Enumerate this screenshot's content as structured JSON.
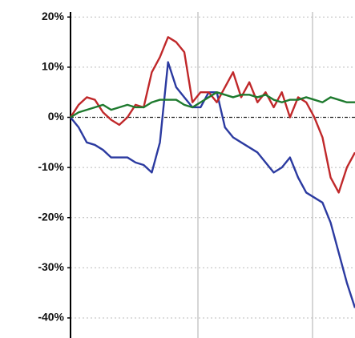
{
  "chart_data": {
    "type": "line",
    "categories": [
      null,
      null,
      null,
      null,
      null,
      null,
      null,
      null,
      null,
      null,
      null,
      null,
      null,
      null,
      null,
      null,
      null,
      null,
      null,
      null,
      null,
      null,
      null,
      null,
      null,
      null,
      null,
      null,
      null,
      null,
      null,
      null,
      null,
      null,
      null,
      null
    ],
    "series": [
      {
        "color": "#2b3aa0",
        "values": [
          0,
          -2,
          -5,
          -5.5,
          -6.5,
          -8,
          -8,
          -8,
          -9,
          -9.5,
          -11,
          -5,
          11,
          6,
          4,
          2,
          2,
          5,
          5,
          -2,
          -4,
          -5,
          -6,
          -7,
          -9,
          -11,
          -10,
          -8,
          -12,
          -15,
          -16,
          -17,
          -21,
          -27,
          -33,
          -38
        ]
      },
      {
        "color": "#c0282a",
        "values": [
          0,
          2.5,
          4,
          3.5,
          1,
          -0.5,
          -1.5,
          0,
          2.5,
          2,
          9,
          12,
          16,
          15,
          13,
          3,
          5,
          5,
          3,
          6,
          9,
          4,
          7,
          3,
          5,
          2,
          5,
          0,
          4,
          3,
          0,
          -4,
          -12,
          -15,
          -10,
          -7
        ]
      },
      {
        "color": "#1e7a2e",
        "values": [
          0,
          1,
          1.5,
          2,
          2.5,
          1.5,
          2,
          2.5,
          2,
          2,
          3,
          3.5,
          3.5,
          3.5,
          2.5,
          2,
          3,
          4,
          5,
          4.5,
          4,
          4.5,
          4.5,
          4,
          4.5,
          3.5,
          3,
          3.5,
          3.5,
          4,
          3.5,
          3,
          4,
          3.5,
          3,
          3
        ]
      }
    ],
    "ylim": [
      -44,
      21
    ],
    "yticks": [
      {
        "value": 20,
        "label": "20%"
      },
      {
        "value": 10,
        "label": "10%"
      },
      {
        "value": 0,
        "label": "0%"
      },
      {
        "value": -10,
        "label": "-10%"
      },
      {
        "value": -20,
        "label": "-20%"
      },
      {
        "value": -30,
        "label": "-30%"
      },
      {
        "value": -40,
        "label": "-40%"
      }
    ],
    "grid": true
  }
}
